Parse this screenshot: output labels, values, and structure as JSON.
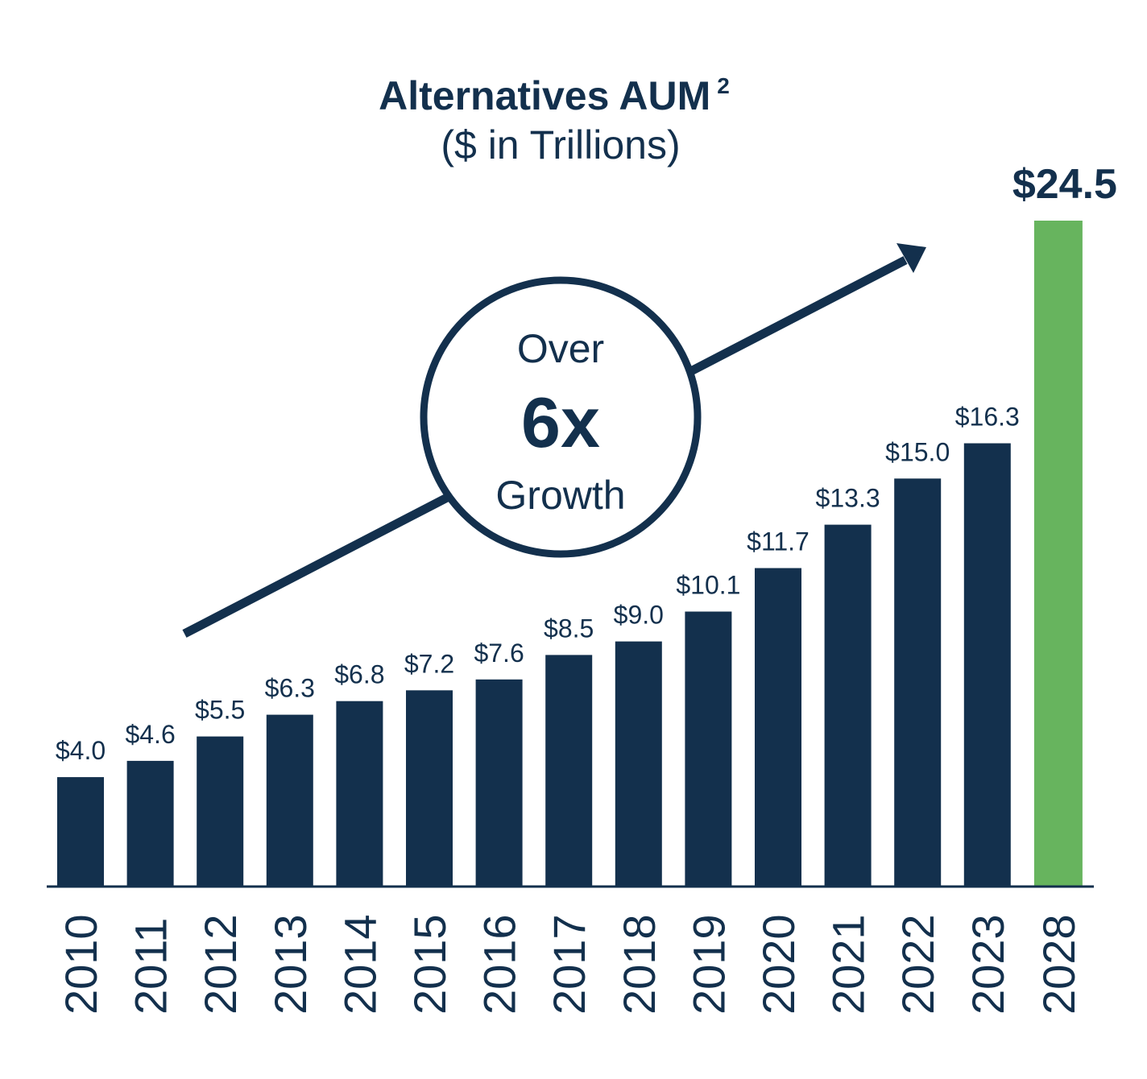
{
  "chart_data": {
    "type": "bar",
    "title": "Alternatives AUM",
    "title_superscript": "2",
    "subtitle": "($ in Trillions)",
    "categories": [
      "2010",
      "2011",
      "2012",
      "2013",
      "2014",
      "2015",
      "2016",
      "2017",
      "2018",
      "2019",
      "2020",
      "2021",
      "2022",
      "2023",
      "2028"
    ],
    "values": [
      4.0,
      4.6,
      5.5,
      6.3,
      6.8,
      7.2,
      7.6,
      8.5,
      9.0,
      10.1,
      11.7,
      13.3,
      15.0,
      16.3,
      24.5
    ],
    "value_labels": [
      "$4.0",
      "$4.6",
      "$5.5",
      "$6.3",
      "$6.8",
      "$7.2",
      "$7.6",
      "$8.5",
      "$9.0",
      "$10.1",
      "$11.7",
      "$13.3",
      "$15.0",
      "$16.3",
      "$24.5"
    ],
    "highlight_index": 14,
    "colors": {
      "bar": "#13304d",
      "highlight": "#67b45e",
      "text": "#13304d",
      "axis": "#13304d"
    },
    "ylim": [
      0,
      24.5
    ],
    "xlabel": "",
    "ylabel": "",
    "grid": false,
    "annotation": {
      "line1": "Over",
      "line2": "6x",
      "line3": "Growth",
      "arrow": "trend-arrow-up-right"
    }
  }
}
